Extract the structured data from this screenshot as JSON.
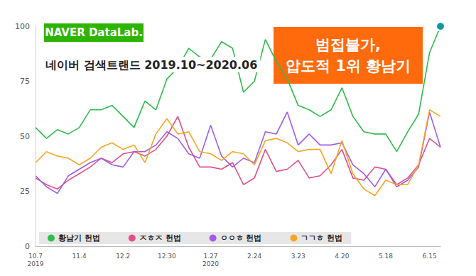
{
  "chart_data": {
    "type": "line",
    "logo": "NAVER DataLab.",
    "title": "네이버 검색트랜드 2019.10~2020.06",
    "annotation": "범접불가,\n압도적 1위 황남기",
    "categories": [
      "10.7\n2019",
      null,
      null,
      null,
      "11.4",
      null,
      null,
      null,
      "12.2",
      null,
      null,
      null,
      "12.30",
      null,
      null,
      null,
      "1.27\n2020",
      null,
      null,
      null,
      "2.24",
      null,
      null,
      null,
      "3.23",
      null,
      null,
      null,
      "4.20",
      null,
      null,
      null,
      "5.18",
      null,
      null,
      null,
      "6.15",
      null
    ],
    "series": [
      {
        "name": "황남기 헌법",
        "color": "#2ebd4c",
        "values": [
          54,
          49,
          53,
          51,
          54,
          62,
          62,
          64,
          59,
          54,
          66,
          62,
          76,
          81,
          90,
          86,
          85,
          93,
          90,
          70,
          75,
          94,
          84,
          76,
          64,
          62,
          59,
          62,
          72,
          59,
          52,
          51,
          51,
          43,
          52,
          60,
          88,
          100
        ]
      },
      {
        "name": "ㅈㅎㅈ 헌법",
        "color": "#e0508a",
        "values": [
          31,
          28,
          26,
          30,
          33,
          36,
          40,
          38,
          42,
          43,
          41,
          44,
          50,
          59,
          45,
          36,
          36,
          35,
          38,
          28,
          31,
          44,
          34,
          35,
          39,
          31,
          32,
          37,
          44,
          31,
          30,
          36,
          35,
          28,
          31,
          37,
          49,
          45
        ]
      },
      {
        "name": "ㅇㅇㅎ 헌법",
        "color": "#a05ce8",
        "values": [
          32,
          27,
          24,
          32,
          35,
          38,
          40,
          37,
          36,
          43,
          43,
          46,
          52,
          49,
          42,
          40,
          55,
          41,
          36,
          40,
          38,
          52,
          51,
          61,
          46,
          51,
          46,
          46,
          47,
          37,
          33,
          27,
          35,
          27,
          30,
          36,
          61,
          45
        ]
      },
      {
        "name": "ㄱㄱㅎ 헌법",
        "color": "#f5a623",
        "values": [
          38,
          43,
          41,
          40,
          37,
          40,
          45,
          47,
          44,
          46,
          38,
          51,
          58,
          51,
          52,
          43,
          42,
          39,
          43,
          42,
          37,
          48,
          49,
          47,
          43,
          44,
          44,
          33,
          48,
          33,
          26,
          23,
          30,
          28,
          28,
          37,
          62,
          59
        ]
      }
    ],
    "ylim": [
      0,
      100
    ],
    "yticks": [
      0,
      25,
      50,
      75,
      100
    ],
    "grid": false,
    "legend": "bottom"
  }
}
